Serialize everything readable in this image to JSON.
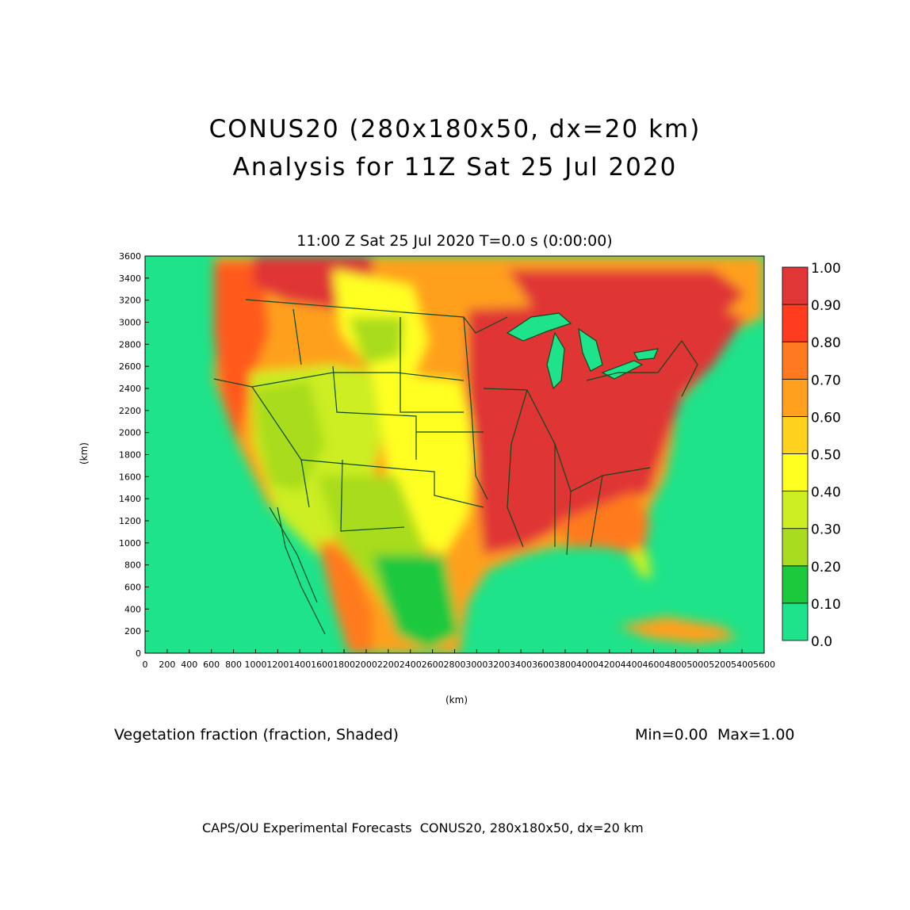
{
  "header": {
    "title_line1": "CONUS20 (280x180x50, dx=20 km)",
    "title_line2": "Analysis for 11Z Sat 25 Jul 2020",
    "subtitle": "11:00 Z Sat 25 Jul 2020    T=0.0 s (0:00:00)"
  },
  "axes": {
    "x_label": "(km)",
    "y_label": "(km)",
    "x_ticks": [
      "0",
      "200",
      "400",
      "600",
      "800",
      "1000",
      "1200",
      "1400",
      "1600",
      "1800",
      "2000",
      "2200",
      "2400",
      "2600",
      "2800",
      "3000",
      "3200",
      "3400",
      "3600",
      "3800",
      "4000",
      "4200",
      "4400",
      "4600",
      "4800",
      "5000",
      "5200",
      "5400",
      "5600"
    ],
    "y_ticks": [
      "0",
      "200",
      "400",
      "600",
      "800",
      "1000",
      "1200",
      "1400",
      "1600",
      "1800",
      "2000",
      "2200",
      "2400",
      "2600",
      "2800",
      "3000",
      "3200",
      "3400",
      "3600"
    ],
    "x_range": [
      0,
      5600
    ],
    "y_range": [
      0,
      3600
    ]
  },
  "legend": {
    "labels": [
      "0.0",
      "0.10",
      "0.20",
      "0.30",
      "0.40",
      "0.50",
      "0.60",
      "0.70",
      "0.80",
      "0.90",
      "1.00"
    ],
    "colors": [
      "#1ee38a",
      "#1cc83c",
      "#a8dc1e",
      "#ccee22",
      "#ffff20",
      "#ffd21e",
      "#ffa01e",
      "#ff7a1e",
      "#ff3c1e",
      "#e03636"
    ]
  },
  "footer": {
    "field_label": "Vegetation fraction (fraction, Shaded)",
    "minmax": "Min=0.00  Max=1.00",
    "credits": "CAPS/OU Experimental Forecasts  CONUS20, 280x180x50, dx=20 km"
  }
}
